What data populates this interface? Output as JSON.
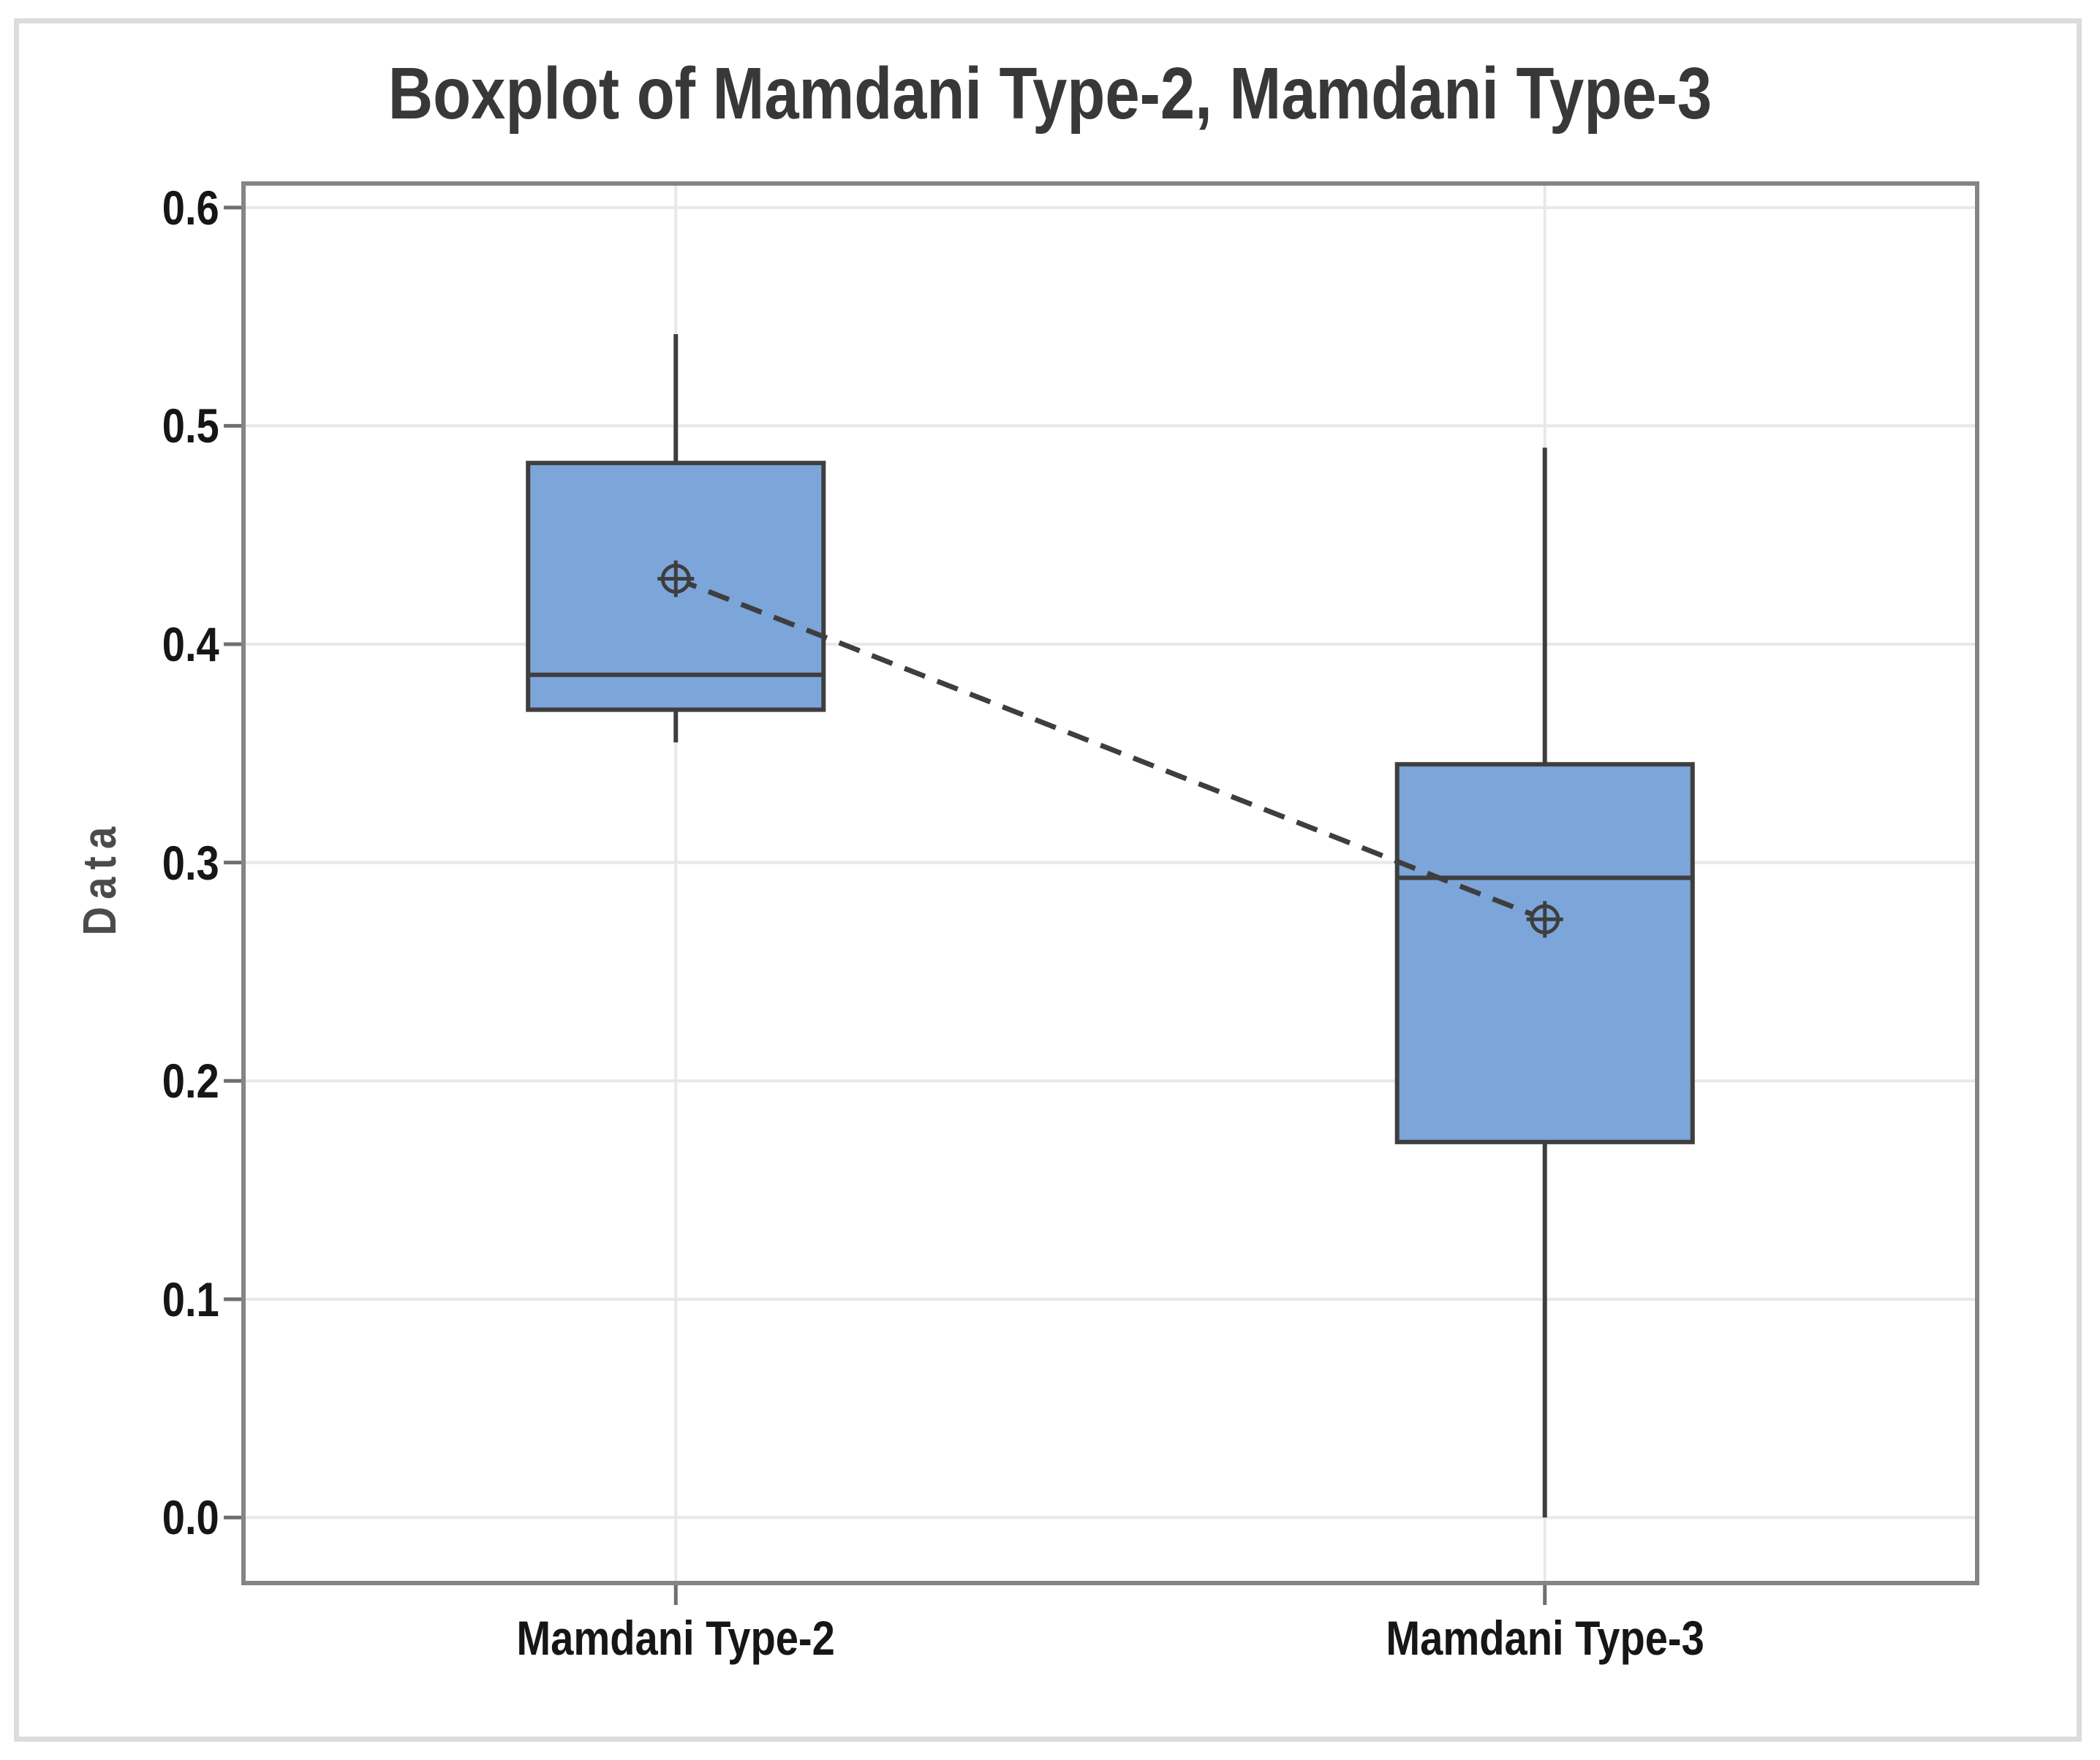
{
  "chart_data": {
    "type": "boxplot",
    "title": "Boxplot of Mamdani Type-2, Mamdani Type-3",
    "ylabel": "Data",
    "xlabel": "",
    "categories": [
      "Mamdani Type-2",
      "Mamdani Type-3"
    ],
    "series": [
      {
        "name": "Mamdani Type-2",
        "whisker_low": 0.355,
        "q1": 0.37,
        "median": 0.386,
        "q3": 0.483,
        "whisker_high": 0.542,
        "mean": 0.43
      },
      {
        "name": "Mamdani Type-3",
        "whisker_low": 0.0,
        "q1": 0.172,
        "median": 0.293,
        "q3": 0.345,
        "whisker_high": 0.49,
        "mean": 0.274
      }
    ],
    "mean_marker": "circle-plus-icon",
    "mean_connector": true,
    "ytick_values": [
      0.0,
      0.1,
      0.2,
      0.3,
      0.4,
      0.5,
      0.6
    ],
    "ytick_labels": [
      "0.0",
      "0.1",
      "0.2",
      "0.3",
      "0.4",
      "0.5",
      "0.6"
    ],
    "ylim": [
      -0.031,
      0.612
    ],
    "grid": true,
    "legend": "none",
    "box_width_frac": 0.17,
    "colors": {
      "box_fill": "#7ca5da",
      "box_border": "#3e3e3e",
      "frame": "#858585",
      "tick": "#6f6f6f",
      "gridline": "#e8e8e8",
      "title_text": "#383838",
      "tick_text": "#161616",
      "axis_label_text": "#4b4b4b",
      "figure_border": "#dcdcdc",
      "background": "#ffffff"
    }
  }
}
